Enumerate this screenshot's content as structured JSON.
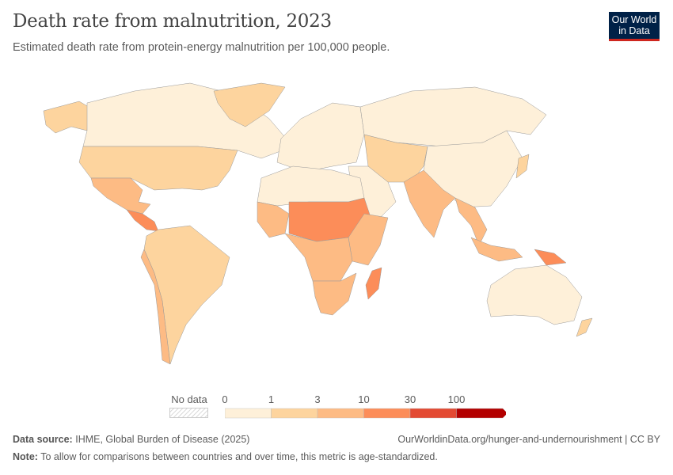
{
  "header": {
    "title": "Death rate from malnutrition, 2023",
    "subtitle": "Estimated death rate from protein-energy malnutrition per 100,000 people.",
    "logo": "Our World in Data"
  },
  "legend": {
    "no_data_label": "No data",
    "ticks": [
      "0",
      "1",
      "3",
      "10",
      "30",
      "100"
    ],
    "bins": [
      {
        "range": "0-1",
        "color": "#fef0d9"
      },
      {
        "range": "1-3",
        "color": "#fdd49e"
      },
      {
        "range": "3-10",
        "color": "#fdbb84"
      },
      {
        "range": "10-30",
        "color": "#fc8d59"
      },
      {
        "range": "30-100",
        "color": "#e34a33"
      },
      {
        "range": ">100",
        "color": "#b30000"
      }
    ]
  },
  "map_regions": {
    "canada": 0,
    "alaska": 1,
    "usa": 1,
    "greenland": 1,
    "mexico": 2,
    "central-america": 3,
    "south-america": 1,
    "andes": 2,
    "europe": 0,
    "russia": 0,
    "central-asia": 1,
    "china": 0,
    "middle-east": 0,
    "india": 2,
    "southeast-asia": 2,
    "north-africa": 0,
    "sahel": 3,
    "west-africa": 2,
    "central-africa": 2,
    "east-africa": 2,
    "southern-africa": 2,
    "madagascar": 3,
    "australia": 0,
    "indonesia": 2,
    "papua": 3,
    "japan": 1,
    "new-zealand": 1
  },
  "footer": {
    "source_label": "Data source:",
    "source": "IHME, Global Burden of Disease (2025)",
    "note_label": "Note:",
    "note": "To allow for comparisons between countries and over time, this metric is age-standardized.",
    "link": "OurWorldinData.org/hunger-and-undernourishment | CC BY"
  }
}
